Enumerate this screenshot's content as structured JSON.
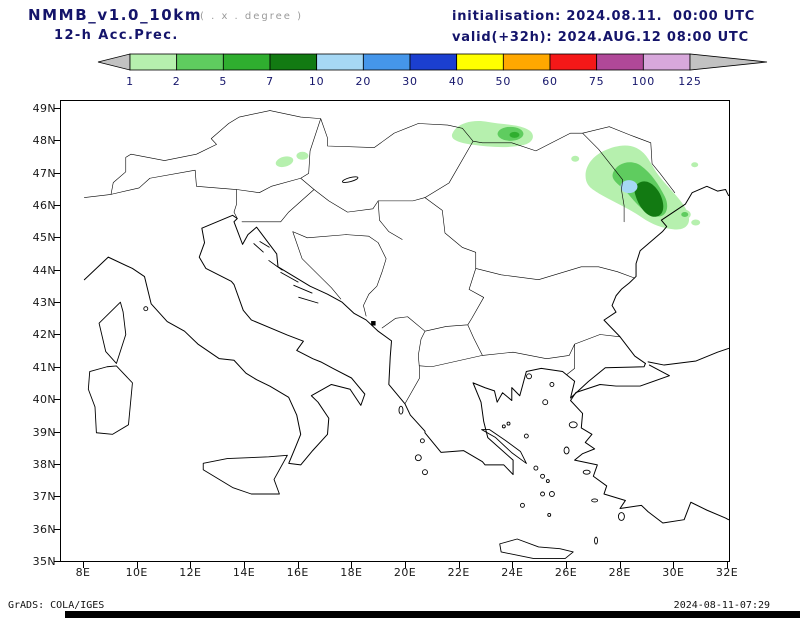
{
  "header": {
    "model": "NMMB_v1.0_10km",
    "grid_note": "( . x . degree )",
    "product": "12-h Acc.Prec.",
    "init_line": "initialisation: 2024.08.11.  00:00 UTC",
    "valid_line": "valid(+32h): 2024.AUG.12 08:00 UTC"
  },
  "colorbar": {
    "levels": [
      "1",
      "2",
      "5",
      "7",
      "10",
      "20",
      "30",
      "40",
      "50",
      "60",
      "75",
      "100",
      "125"
    ],
    "segment_colors": [
      "#b6f0ae",
      "#5fcc5f",
      "#2fae2f",
      "#127a12",
      "#a6d8f5",
      "#4596ea",
      "#1b3fd0",
      "#ffff00",
      "#ffa800",
      "#f51818",
      "#b04898",
      "#d8a8dc"
    ],
    "arrow_color": "#c2c2c2",
    "label_color": "#14146a"
  },
  "map": {
    "lat_labels": [
      "49N",
      "48N",
      "47N",
      "46N",
      "45N",
      "44N",
      "43N",
      "42N",
      "41N",
      "40N",
      "39N",
      "38N",
      "37N",
      "36N",
      "35N"
    ],
    "lon_labels": [
      "8E",
      "10E",
      "12E",
      "14E",
      "16E",
      "18E",
      "20E",
      "22E",
      "24E",
      "26E",
      "28E",
      "30E",
      "32E"
    ]
  },
  "footer": {
    "credit": "GrADS: COLA/IGES",
    "timestamp": "2024-08-11-07:29"
  },
  "chart_data": {
    "type": "heatmap",
    "title": "NMMB_v1.0_10km 12-h Acc.Prec.",
    "subtitle_init": "initialisation: 2024.08.11.  00:00 UTC",
    "subtitle_valid": "valid(+32h): 2024.AUG.12 08:00 UTC",
    "x_axis": {
      "ticks": [
        "8E",
        "10E",
        "12E",
        "14E",
        "16E",
        "18E",
        "20E",
        "22E",
        "24E",
        "26E",
        "28E",
        "30E",
        "32E"
      ],
      "range_deg_east": [
        7.2,
        32.3
      ]
    },
    "y_axis": {
      "ticks": [
        "49N",
        "48N",
        "47N",
        "46N",
        "45N",
        "44N",
        "43N",
        "42N",
        "41N",
        "40N",
        "39N",
        "38N",
        "37N",
        "36N",
        "35N"
      ],
      "range_deg_north": [
        35.0,
        49.3
      ]
    },
    "legend_position": "top",
    "grid": false,
    "levels": [
      1,
      2,
      5,
      7,
      10,
      20,
      30,
      40,
      50,
      60,
      75,
      100,
      125
    ],
    "level_colors": [
      "#b6f0ae",
      "#5fcc5f",
      "#2fae2f",
      "#127a12",
      "#a6d8f5",
      "#4596ea",
      "#1b3fd0",
      "#ffff00",
      "#ffa800",
      "#f51818",
      "#b04898",
      "#d8a8dc"
    ],
    "precipitation_features": [
      {
        "location_lon_lat": "15.5-16.2E, 47.1-47.5N (eastern Alps)",
        "value_range": "1-2"
      },
      {
        "location_lon_lat": "22-24.5E, 47.8-48.4N (northern Carpathians)",
        "value_range": "1-5"
      },
      {
        "location_lon_lat": "26.8-29.3E, 45.6-47.6N (Moldova / E Romania)",
        "value_range": "1-20",
        "peak_band": "10-20"
      },
      {
        "location_lon_lat": "29-30E, 45.7-46.3N (NW Black Sea coast)",
        "value_range": "1-5"
      }
    ]
  }
}
